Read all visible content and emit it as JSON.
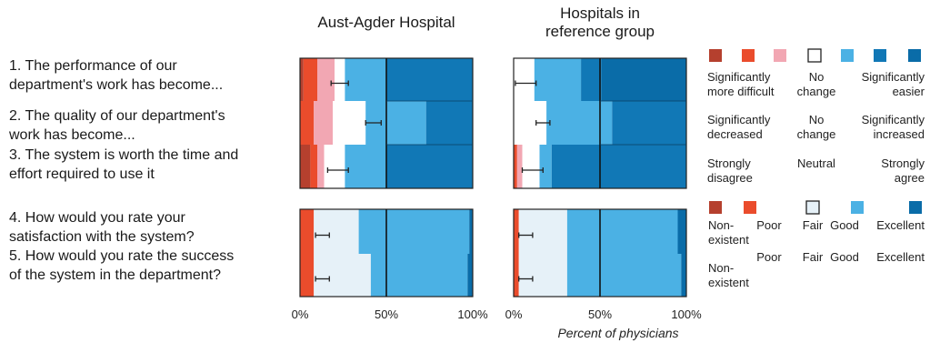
{
  "questions": [
    "1. The performance of our\ndepartment's work has become...",
    "2. The quality of our department's\nwork has become...",
    "3. The system is worth the time and\neffort required to use it",
    "4. How would you rate your\nsatisfaction with the system?",
    "5. How would you rate the success\nof the system in the department?"
  ],
  "panel_titles": [
    "Aust-Agder Hospital",
    "Hospitals in\nreference group"
  ],
  "x_ticks": [
    "0%",
    "50%",
    "100%"
  ],
  "x_label": "Percent of physicians",
  "colors": {
    "c1": "#b5402e",
    "c2": "#ea4c2c",
    "c3": "#f2a7b3",
    "c4": "#ffffff",
    "c4_fair": "#e6f1f8",
    "c5": "#4bb1e4",
    "c6": "#1178b6",
    "c7": "#0a6ca8"
  },
  "legend": {
    "group1": {
      "swatches": [
        "c1",
        "c2",
        "c3",
        "c4",
        "c5",
        "c6",
        "c7"
      ],
      "rows": [
        [
          "Significantly\nmore difficult",
          "No\nchange",
          "Significantly\neasier"
        ],
        [
          "Significantly\ndecreased",
          "No\nchange",
          "Significantly\nincreased"
        ],
        [
          "Strongly\ndisagree",
          "Neutral",
          "Strongly\nagree"
        ]
      ]
    },
    "group2": {
      "swatches": [
        "c1",
        "c2",
        "c4",
        "c5",
        "c7"
      ],
      "rows": [
        [
          "Non-\nexistent",
          "Poor",
          "Fair",
          "Good",
          "Excellent"
        ],
        [
          "Non-\nexistent",
          "Poor",
          "Fair",
          "Good",
          "Excellent"
        ]
      ]
    }
  },
  "chart_data": [
    {
      "type": "bar",
      "subtype": "stacked-horizontal-100",
      "title": "Aust-Agder Hospital",
      "xlabel": "Percent of physicians",
      "xlim": [
        0,
        100
      ],
      "rows": [
        {
          "question": 1,
          "segments": [
            {
              "color": "c1",
              "value": 2
            },
            {
              "color": "c2",
              "value": 8
            },
            {
              "color": "c3",
              "value": 10
            },
            {
              "color": "c4",
              "value": 6
            },
            {
              "color": "c5",
              "value": 24
            },
            {
              "color": "c6",
              "value": 50
            }
          ],
          "error_bar": [
            18,
            28
          ]
        },
        {
          "question": 2,
          "segments": [
            {
              "color": "c2",
              "value": 8
            },
            {
              "color": "c3",
              "value": 11
            },
            {
              "color": "c4",
              "value": 19
            },
            {
              "color": "c5",
              "value": 35
            },
            {
              "color": "c6",
              "value": 27
            }
          ],
          "error_bar": [
            38,
            47
          ]
        },
        {
          "question": 3,
          "segments": [
            {
              "color": "c1",
              "value": 6
            },
            {
              "color": "c2",
              "value": 4
            },
            {
              "color": "c3",
              "value": 4
            },
            {
              "color": "c4",
              "value": 12
            },
            {
              "color": "c5",
              "value": 24
            },
            {
              "color": "c6",
              "value": 50
            }
          ],
          "error_bar": [
            16,
            28
          ]
        },
        {
          "question": 4,
          "segments": [
            {
              "color": "c2",
              "value": 8
            },
            {
              "color": "c4_fair",
              "value": 26
            },
            {
              "color": "c5",
              "value": 64
            },
            {
              "color": "c7",
              "value": 2
            }
          ],
          "error_bar": [
            9,
            17
          ]
        },
        {
          "question": 5,
          "segments": [
            {
              "color": "c2",
              "value": 8
            },
            {
              "color": "c4_fair",
              "value": 33
            },
            {
              "color": "c5",
              "value": 56
            },
            {
              "color": "c7",
              "value": 3
            }
          ],
          "error_bar": [
            9,
            17
          ]
        }
      ]
    },
    {
      "type": "bar",
      "subtype": "stacked-horizontal-100",
      "title": "Hospitals in reference group",
      "xlabel": "Percent of physicians",
      "xlim": [
        0,
        100
      ],
      "rows": [
        {
          "question": 1,
          "segments": [
            {
              "color": "c4",
              "value": 12
            },
            {
              "color": "c5",
              "value": 27
            },
            {
              "color": "c6",
              "value": 12
            },
            {
              "color": "c7",
              "value": 49
            }
          ],
          "error_bar": [
            1,
            13
          ]
        },
        {
          "question": 2,
          "segments": [
            {
              "color": "c4",
              "value": 19
            },
            {
              "color": "c5",
              "value": 38
            },
            {
              "color": "c6",
              "value": 43
            }
          ],
          "error_bar": [
            13,
            21
          ]
        },
        {
          "question": 3,
          "segments": [
            {
              "color": "c2",
              "value": 2
            },
            {
              "color": "c3",
              "value": 3
            },
            {
              "color": "c4",
              "value": 10
            },
            {
              "color": "c5",
              "value": 7
            },
            {
              "color": "c6",
              "value": 78
            }
          ],
          "error_bar": [
            5,
            17
          ]
        },
        {
          "question": 4,
          "segments": [
            {
              "color": "c2",
              "value": 3
            },
            {
              "color": "c4_fair",
              "value": 28
            },
            {
              "color": "c5",
              "value": 64
            },
            {
              "color": "c7",
              "value": 5
            }
          ],
          "error_bar": [
            3,
            11
          ]
        },
        {
          "question": 5,
          "segments": [
            {
              "color": "c2",
              "value": 3
            },
            {
              "color": "c4_fair",
              "value": 28
            },
            {
              "color": "c5",
              "value": 66
            },
            {
              "color": "c7",
              "value": 3
            }
          ],
          "error_bar": [
            3,
            11
          ]
        }
      ]
    }
  ]
}
